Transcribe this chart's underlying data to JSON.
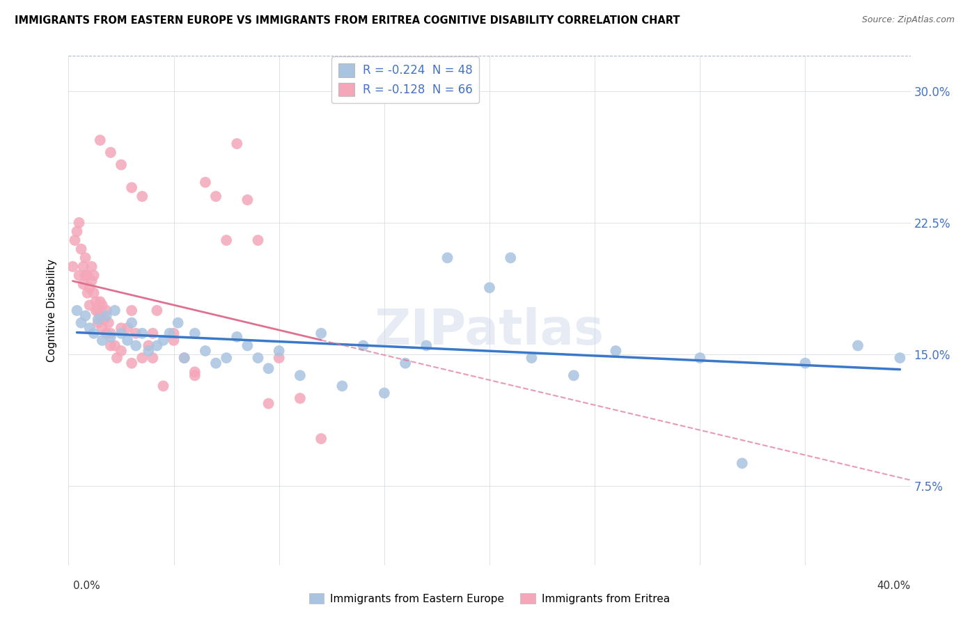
{
  "title": "IMMIGRANTS FROM EASTERN EUROPE VS IMMIGRANTS FROM ERITREA COGNITIVE DISABILITY CORRELATION CHART",
  "source": "Source: ZipAtlas.com",
  "ylabel": "Cognitive Disability",
  "ytick_labels": [
    "7.5%",
    "15.0%",
    "22.5%",
    "30.0%"
  ],
  "ytick_values": [
    0.075,
    0.15,
    0.225,
    0.3
  ],
  "xlim": [
    0.0,
    0.4
  ],
  "ylim": [
    0.03,
    0.32
  ],
  "legend_label1": "R = -0.224  N = 48",
  "legend_label2": "R = -0.128  N = 66",
  "color_eastern": "#a8c4e0",
  "color_eritrea": "#f4a7b9",
  "line_color_eastern": "#3a78c9",
  "line_color_eritrea": "#e07090",
  "watermark": "ZIPatlas",
  "legend_color_text": "#4472c4",
  "eastern_europe_x": [
    0.004,
    0.006,
    0.008,
    0.01,
    0.012,
    0.014,
    0.016,
    0.018,
    0.02,
    0.022,
    0.025,
    0.028,
    0.03,
    0.032,
    0.035,
    0.038,
    0.042,
    0.045,
    0.048,
    0.052,
    0.055,
    0.06,
    0.065,
    0.07,
    0.075,
    0.08,
    0.085,
    0.09,
    0.095,
    0.1,
    0.11,
    0.12,
    0.13,
    0.14,
    0.15,
    0.16,
    0.17,
    0.18,
    0.2,
    0.21,
    0.22,
    0.24,
    0.26,
    0.3,
    0.32,
    0.35,
    0.375,
    0.395
  ],
  "eastern_europe_y": [
    0.175,
    0.168,
    0.172,
    0.165,
    0.162,
    0.17,
    0.158,
    0.172,
    0.16,
    0.175,
    0.162,
    0.158,
    0.168,
    0.155,
    0.162,
    0.152,
    0.155,
    0.158,
    0.162,
    0.168,
    0.148,
    0.162,
    0.152,
    0.145,
    0.148,
    0.16,
    0.155,
    0.148,
    0.142,
    0.152,
    0.138,
    0.162,
    0.132,
    0.155,
    0.128,
    0.145,
    0.155,
    0.205,
    0.188,
    0.205,
    0.148,
    0.138,
    0.152,
    0.148,
    0.088,
    0.145,
    0.155,
    0.148
  ],
  "eritrea_x": [
    0.002,
    0.003,
    0.004,
    0.005,
    0.005,
    0.006,
    0.007,
    0.007,
    0.008,
    0.008,
    0.009,
    0.009,
    0.01,
    0.01,
    0.011,
    0.011,
    0.012,
    0.012,
    0.013,
    0.013,
    0.014,
    0.014,
    0.015,
    0.015,
    0.016,
    0.016,
    0.017,
    0.018,
    0.018,
    0.019,
    0.02,
    0.02,
    0.022,
    0.023,
    0.025,
    0.025,
    0.028,
    0.03,
    0.03,
    0.032,
    0.035,
    0.038,
    0.04,
    0.042,
    0.045,
    0.05,
    0.055,
    0.06,
    0.065,
    0.07,
    0.075,
    0.08,
    0.085,
    0.09,
    0.095,
    0.1,
    0.11,
    0.12,
    0.04,
    0.05,
    0.06,
    0.015,
    0.02,
    0.025,
    0.03,
    0.035
  ],
  "eritrea_y": [
    0.2,
    0.215,
    0.22,
    0.225,
    0.195,
    0.21,
    0.2,
    0.19,
    0.195,
    0.205,
    0.185,
    0.195,
    0.188,
    0.178,
    0.2,
    0.192,
    0.185,
    0.195,
    0.18,
    0.175,
    0.175,
    0.168,
    0.18,
    0.172,
    0.165,
    0.178,
    0.17,
    0.162,
    0.175,
    0.168,
    0.155,
    0.162,
    0.155,
    0.148,
    0.165,
    0.152,
    0.165,
    0.175,
    0.145,
    0.162,
    0.148,
    0.155,
    0.148,
    0.175,
    0.132,
    0.162,
    0.148,
    0.14,
    0.248,
    0.24,
    0.215,
    0.27,
    0.238,
    0.215,
    0.122,
    0.148,
    0.125,
    0.102,
    0.162,
    0.158,
    0.138,
    0.272,
    0.265,
    0.258,
    0.245,
    0.24
  ]
}
